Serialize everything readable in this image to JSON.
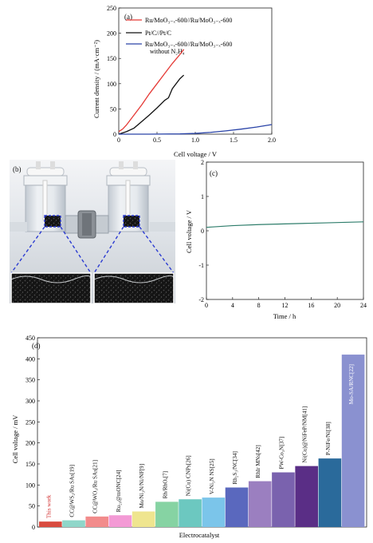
{
  "chart_data": [
    {
      "panel": "(a)",
      "type": "line",
      "xlabel": "Cell voltage / V",
      "ylabel": "Current density / (mA·cm⁻²)",
      "xlim": [
        0,
        2.0
      ],
      "ylim": [
        0,
        250
      ],
      "xticks": [
        "0",
        "0.5",
        "1.0",
        "1.5",
        "2.0"
      ],
      "yticks": [
        "0",
        "50",
        "100",
        "150",
        "200",
        "250"
      ],
      "legend_position": "top-right",
      "series": [
        {
          "name": "Ru/MoO₃₋ₓ-600//Ru/MoO₃₋ₓ-600",
          "color": "#e53935",
          "x": [
            0,
            0.05,
            0.1,
            0.2,
            0.3,
            0.4,
            0.5,
            0.6,
            0.7,
            0.8,
            0.85
          ],
          "y": [
            5,
            10,
            18,
            38,
            58,
            80,
            100,
            120,
            140,
            158,
            168
          ]
        },
        {
          "name": "Pt/C//Pt/C",
          "color": "#111111",
          "x": [
            0,
            0.1,
            0.2,
            0.3,
            0.4,
            0.5,
            0.6,
            0.65,
            0.7,
            0.8,
            0.85
          ],
          "y": [
            0,
            5,
            12,
            25,
            38,
            52,
            67,
            72,
            90,
            110,
            117
          ]
        },
        {
          "name": "Ru/MoO₃₋ₓ-600//Ru/MoO₃₋ₓ-600 without N₂H₄",
          "color": "#2a44a8",
          "x": [
            0,
            0.4,
            0.8,
            1.0,
            1.2,
            1.4,
            1.6,
            1.8,
            2.0
          ],
          "y": [
            0,
            0,
            0.5,
            1.5,
            3.5,
            6.5,
            10,
            14,
            19
          ]
        }
      ]
    },
    {
      "panel": "(c)",
      "type": "line",
      "xlabel": "Time / h",
      "ylabel": "Cell voltage / V",
      "xlim": [
        0,
        24
      ],
      "ylim": [
        -2,
        2
      ],
      "xticks": [
        "0",
        "4",
        "8",
        "12",
        "16",
        "20",
        "24"
      ],
      "yticks": [
        "-2",
        "-1",
        "0",
        "1",
        "2"
      ],
      "series": [
        {
          "color": "#2e7d6b",
          "x": [
            0,
            4,
            8,
            12,
            16,
            20,
            24
          ],
          "y": [
            0.1,
            0.15,
            0.18,
            0.2,
            0.22,
            0.24,
            0.26
          ]
        }
      ]
    },
    {
      "panel": "(d)",
      "type": "bar",
      "xlabel": "Electrocatalyst",
      "ylabel": "Cell voltage / mV",
      "ylim": [
        0,
        450
      ],
      "yticks": [
        "0",
        "50",
        "100",
        "150",
        "200",
        "250",
        "300",
        "350",
        "400",
        "450"
      ],
      "categories": [
        "This work",
        "CC@WS₂/Ru SAs[19]",
        "CC@WO₃/Ru SAs[21]",
        "Ru₂₀@mONC[24]",
        "Mo/Ni₃N/Ni/NF[9]",
        "Rh/RhOₓ[7]",
        "Ni(Cu) CNPs[26]",
        "V-Ni₃N NS[25]",
        "Rh₂S₃/NC[34]",
        "RhIr MNs[42]",
        "PW-Co₃N[37]",
        "Ni(Cu)@NiFeP/NM[41]",
        "P-NiFe/Ni[38]",
        "Mo-SA/RNC[22]"
      ],
      "values": [
        13,
        16,
        25,
        28,
        37,
        60,
        66,
        70,
        94,
        109,
        130,
        145,
        163,
        410
      ],
      "colors": [
        "#d94b3f",
        "#8fd6c9",
        "#f28b8b",
        "#f39ad5",
        "#efe58f",
        "#86d3a3",
        "#6cc8c0",
        "#7bc5ea",
        "#5a68be",
        "#9b7fc0",
        "#7a62ae",
        "#5a2e86",
        "#2a6a9b",
        "#8a91d0"
      ],
      "label_colors": [
        "#d12b2b",
        "#111111",
        "#111111",
        "#111111",
        "#111111",
        "#111111",
        "#111111",
        "#111111",
        "#111111",
        "#111111",
        "#111111",
        "#111111",
        "#111111",
        "#ffffff"
      ]
    }
  ],
  "photo": {
    "panel": "(b)"
  }
}
